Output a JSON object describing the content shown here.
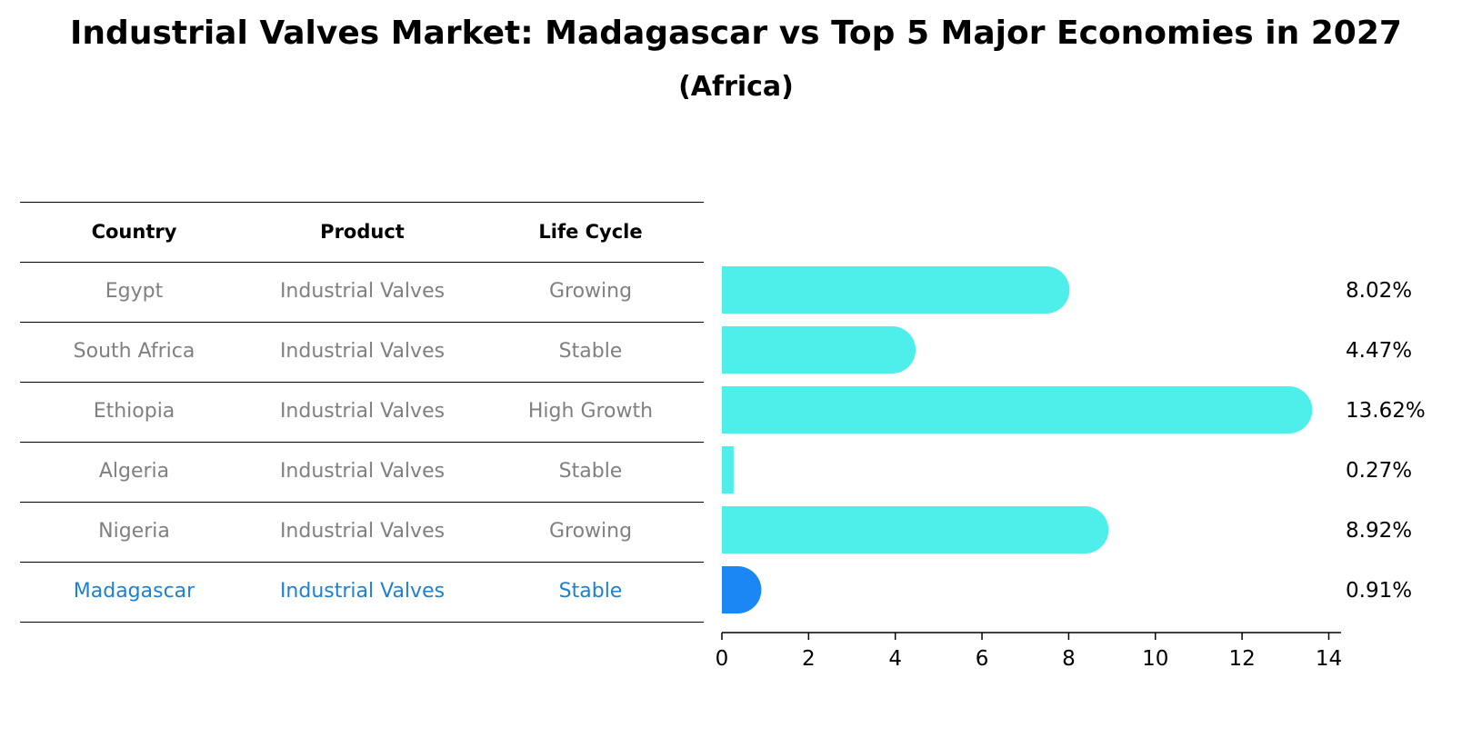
{
  "title": "Industrial Valves Market: Madagascar vs Top 5 Major Economies in 2027",
  "subtitle": "(Africa)",
  "table": {
    "headers": [
      "Country",
      "Product",
      "Life Cycle"
    ],
    "rows": [
      {
        "country": "Egypt",
        "product": "Industrial Valves",
        "life_cycle": "Growing"
      },
      {
        "country": "South Africa",
        "product": "Industrial Valves",
        "life_cycle": "Stable"
      },
      {
        "country": "Ethiopia",
        "product": "Industrial Valves",
        "life_cycle": "High Growth"
      },
      {
        "country": "Algeria",
        "product": "Industrial Valves",
        "life_cycle": "Stable"
      },
      {
        "country": "Nigeria",
        "product": "Industrial Valves",
        "life_cycle": "Growing"
      },
      {
        "country": "Madagascar",
        "product": "Industrial Valves",
        "life_cycle": "Stable"
      }
    ]
  },
  "chart_data": {
    "type": "bar",
    "orientation": "horizontal",
    "categories": [
      "Egypt",
      "South Africa",
      "Ethiopia",
      "Algeria",
      "Nigeria",
      "Madagascar"
    ],
    "values": [
      8.02,
      4.47,
      13.62,
      0.27,
      8.92,
      0.91
    ],
    "value_labels": [
      "8.02%",
      "4.47%",
      "13.62%",
      "0.27%",
      "8.92%",
      "0.91%"
    ],
    "highlight_category": "Madagascar",
    "xlim": [
      0,
      14.2
    ],
    "xticks": [
      0,
      2,
      4,
      6,
      8,
      10,
      12,
      14
    ],
    "xlabel": "",
    "ylabel": "",
    "grid": false,
    "legend": "none",
    "colors": {
      "bar": "#4eeeea",
      "highlight": "#1a87f5",
      "axis": "#000000",
      "text_muted": "#808080",
      "text_highlight": "#1e80d2"
    }
  }
}
